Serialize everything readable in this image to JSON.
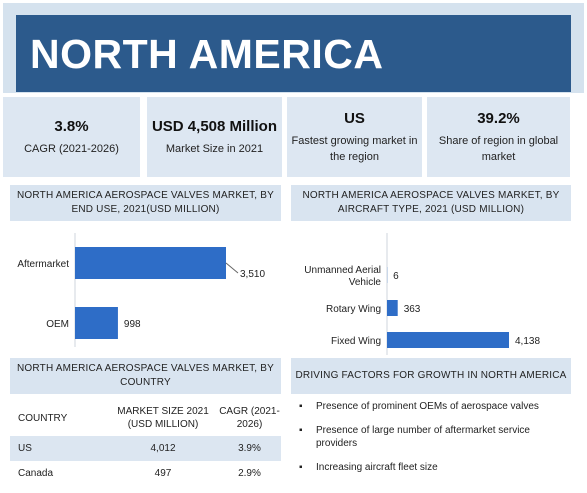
{
  "banner": {
    "title": "NORTH AMERICA"
  },
  "kpis": [
    {
      "value": "3.8%",
      "label": "CAGR (2021-2026)"
    },
    {
      "value": "USD 4,508 Million",
      "label": "Market Size in 2021"
    },
    {
      "value": "US",
      "label": "Fastest growing market in the region"
    },
    {
      "value": "39.2%",
      "label": "Share of region in global market"
    }
  ],
  "panels": {
    "end_use_title": "NORTH AMERICA AEROSPACE VALVES MARKET, BY END USE, 2021(USD MILLION)",
    "aircraft_title": "NORTH AMERICA AEROSPACE VALVES MARKET, BY AIRCRAFT TYPE, 2021 (USD MILLION)",
    "country_title": "NORTH AMERICA AEROSPACE VALVES MARKET, BY COUNTRY",
    "drivers_title": "DRIVING FACTORS FOR GROWTH IN NORTH AMERICA"
  },
  "colors": {
    "bar": "#2e6dc7",
    "banner": "#2c5a8c",
    "panel": "#d9e4f0"
  },
  "chart_data": [
    {
      "type": "bar",
      "orientation": "horizontal",
      "title": "NORTH AMERICA AEROSPACE VALVES MARKET, BY END USE, 2021(USD MILLION)",
      "categories": [
        "Aftermarket",
        "OEM"
      ],
      "values": [
        3510,
        998
      ],
      "value_labels": [
        "3,510",
        "998"
      ]
    },
    {
      "type": "bar",
      "orientation": "horizontal",
      "title": "NORTH AMERICA AEROSPACE VALVES MARKET, BY AIRCRAFT TYPE, 2021 (USD MILLION)",
      "categories": [
        "Unmanned Aerial Vehicle",
        "Rotary Wing",
        "Fixed Wing"
      ],
      "values": [
        6,
        363,
        4138
      ],
      "value_labels": [
        "6",
        "363",
        "4,138"
      ]
    }
  ],
  "country_table": {
    "headers": [
      "COUNTRY",
      "MARKET SIZE 2021 (USD MILLION)",
      "CAGR (2021-2026)"
    ],
    "rows": [
      [
        "US",
        "4,012",
        "3.9%"
      ],
      [
        "Canada",
        "497",
        "2.9%"
      ]
    ]
  },
  "drivers": [
    "Presence of prominent OEMs of aerospace valves",
    "Presence of large number of aftermarket service providers",
    "Increasing aircraft fleet size"
  ]
}
